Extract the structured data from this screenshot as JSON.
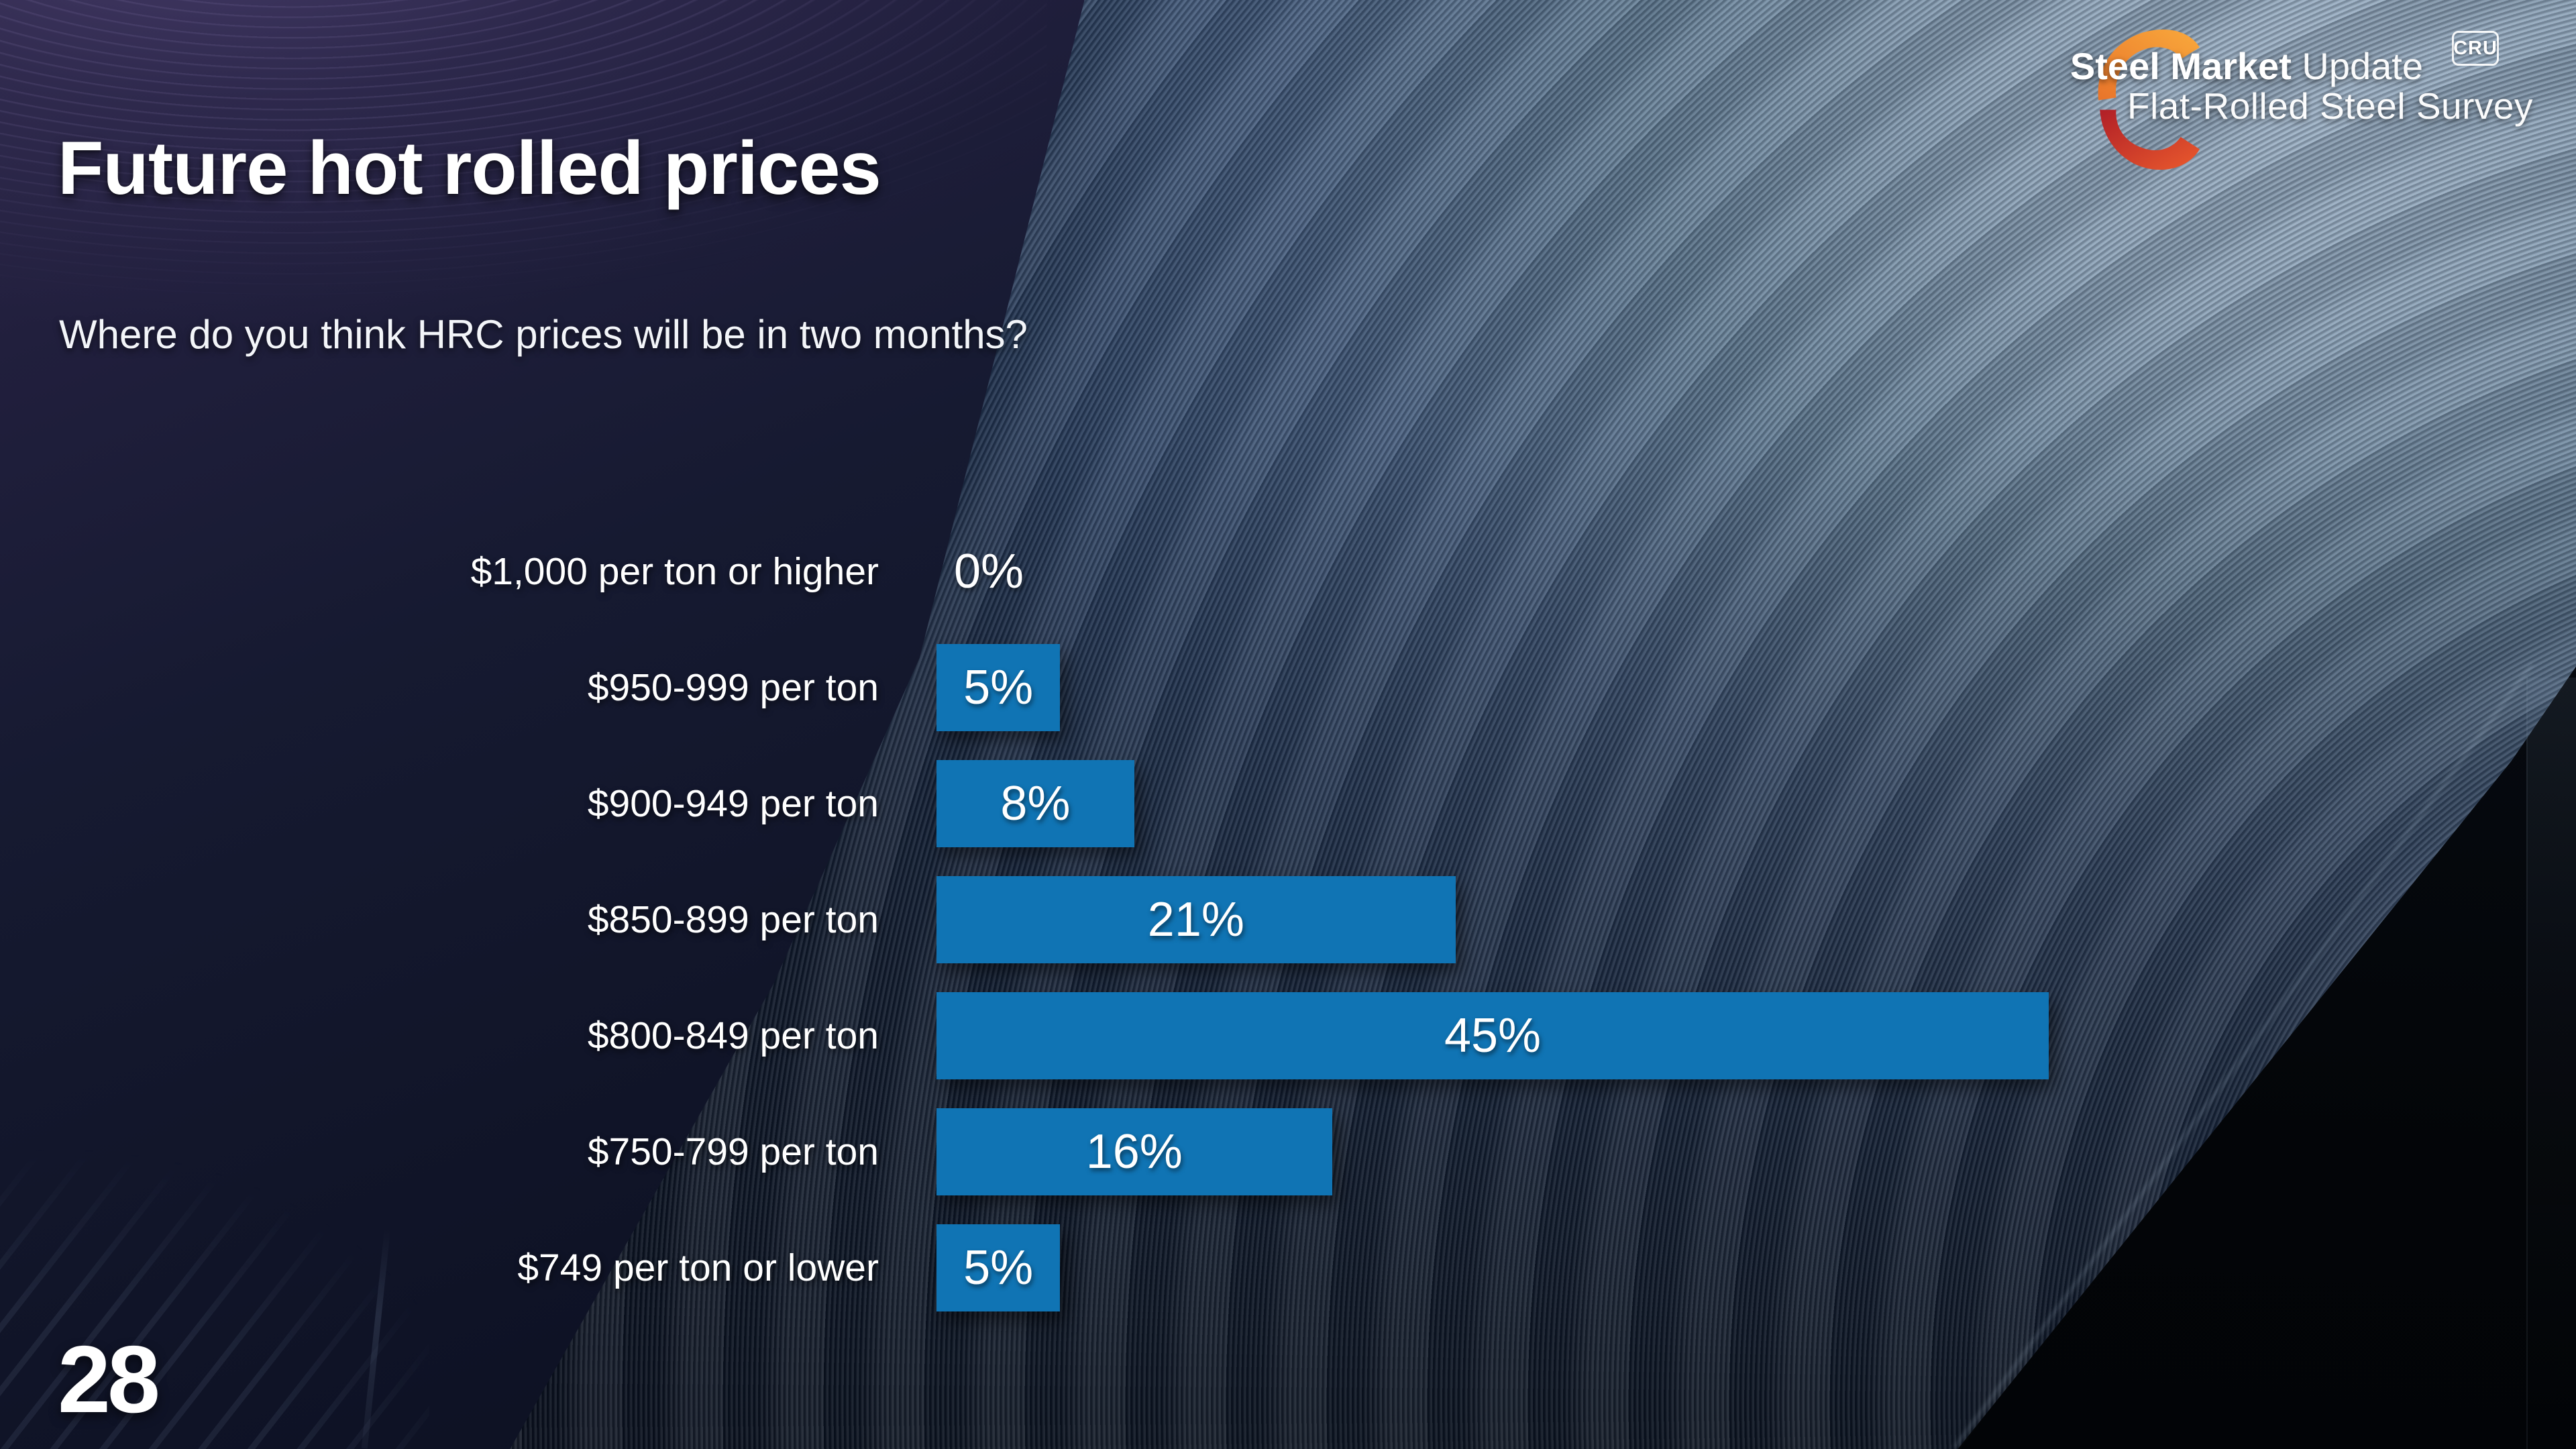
{
  "slide": {
    "title": "Future hot rolled prices",
    "subtitle": "Where do you think HRC prices will be in two months?",
    "page_number": "28"
  },
  "logo": {
    "brand_bold": "Steel Market",
    "brand_light": "Update",
    "subbrand": "Flat-Rolled Steel Survey",
    "badge": "CRU",
    "colors": {
      "orange": "#F1882B",
      "red": "#C8242B"
    }
  },
  "chart_data": {
    "type": "bar",
    "orientation": "horizontal",
    "title": "Where do you think HRC prices will be in two months?",
    "categories": [
      "$1,000 per ton or higher",
      "$950-999 per ton",
      "$900-949 per ton",
      "$850-899 per ton",
      "$800-849 per ton",
      "$750-799 per ton",
      "$749 per ton or lower"
    ],
    "values": [
      0,
      5,
      8,
      21,
      45,
      16,
      5
    ],
    "value_labels": [
      "0%",
      "5%",
      "8%",
      "21%",
      "45%",
      "16%",
      "5%"
    ],
    "bar_color": "#1074B4",
    "xlim": [
      0,
      45
    ],
    "grid": false,
    "legend": false
  }
}
